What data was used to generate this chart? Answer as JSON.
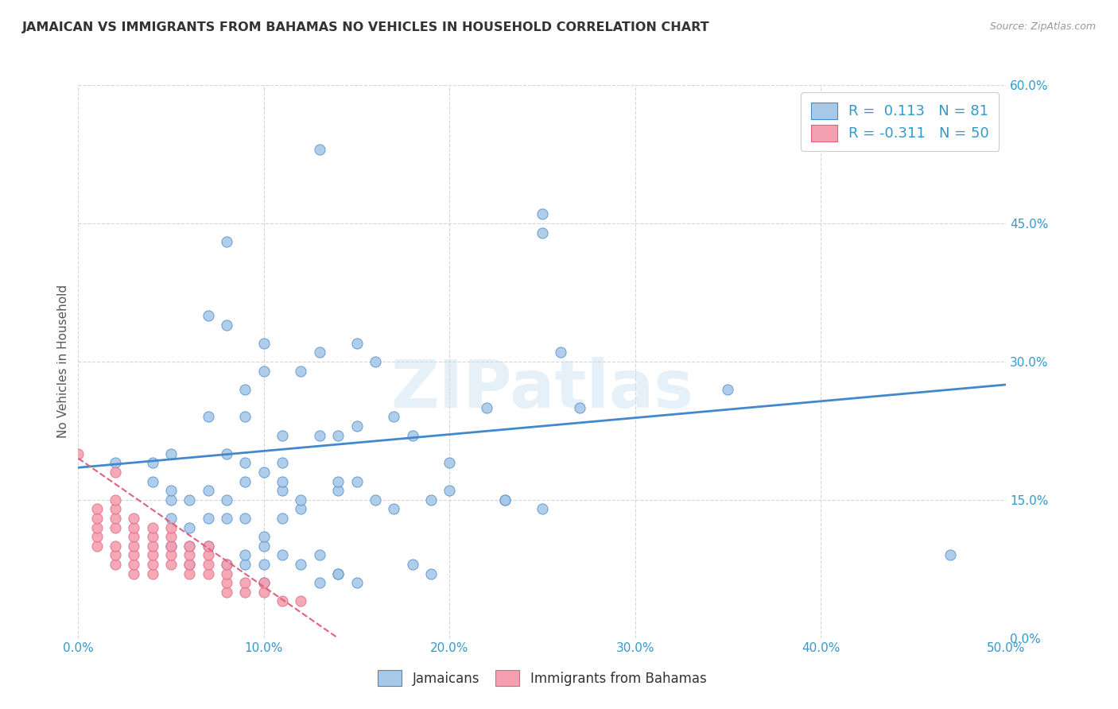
{
  "title": "JAMAICAN VS IMMIGRANTS FROM BAHAMAS NO VEHICLES IN HOUSEHOLD CORRELATION CHART",
  "source": "Source: ZipAtlas.com",
  "xlim": [
    0.0,
    0.5
  ],
  "ylim": [
    0.0,
    0.6
  ],
  "watermark": "ZIPatlas",
  "legend_label1": "Jamaicans",
  "legend_label2": "Immigrants from Bahamas",
  "r1": 0.113,
  "n1": 81,
  "r2": -0.311,
  "n2": 50,
  "blue_color": "#a8c8e8",
  "pink_color": "#f4a0b0",
  "blue_line_color": "#4488cc",
  "pink_line_color": "#e06080",
  "blue_scatter": [
    [
      0.02,
      0.19
    ],
    [
      0.04,
      0.17
    ],
    [
      0.04,
      0.19
    ],
    [
      0.05,
      0.1
    ],
    [
      0.05,
      0.13
    ],
    [
      0.05,
      0.15
    ],
    [
      0.05,
      0.16
    ],
    [
      0.05,
      0.2
    ],
    [
      0.06,
      0.08
    ],
    [
      0.06,
      0.1
    ],
    [
      0.06,
      0.12
    ],
    [
      0.06,
      0.15
    ],
    [
      0.07,
      0.1
    ],
    [
      0.07,
      0.13
    ],
    [
      0.07,
      0.16
    ],
    [
      0.07,
      0.24
    ],
    [
      0.07,
      0.35
    ],
    [
      0.08,
      0.08
    ],
    [
      0.08,
      0.13
    ],
    [
      0.08,
      0.15
    ],
    [
      0.08,
      0.2
    ],
    [
      0.08,
      0.34
    ],
    [
      0.08,
      0.43
    ],
    [
      0.09,
      0.08
    ],
    [
      0.09,
      0.09
    ],
    [
      0.09,
      0.13
    ],
    [
      0.09,
      0.17
    ],
    [
      0.09,
      0.19
    ],
    [
      0.09,
      0.24
    ],
    [
      0.09,
      0.27
    ],
    [
      0.1,
      0.06
    ],
    [
      0.1,
      0.08
    ],
    [
      0.1,
      0.1
    ],
    [
      0.1,
      0.11
    ],
    [
      0.1,
      0.18
    ],
    [
      0.1,
      0.29
    ],
    [
      0.1,
      0.32
    ],
    [
      0.11,
      0.09
    ],
    [
      0.11,
      0.13
    ],
    [
      0.11,
      0.16
    ],
    [
      0.11,
      0.17
    ],
    [
      0.11,
      0.19
    ],
    [
      0.11,
      0.22
    ],
    [
      0.12,
      0.08
    ],
    [
      0.12,
      0.14
    ],
    [
      0.12,
      0.15
    ],
    [
      0.12,
      0.29
    ],
    [
      0.13,
      0.06
    ],
    [
      0.13,
      0.09
    ],
    [
      0.13,
      0.22
    ],
    [
      0.13,
      0.31
    ],
    [
      0.13,
      0.53
    ],
    [
      0.14,
      0.07
    ],
    [
      0.14,
      0.07
    ],
    [
      0.14,
      0.16
    ],
    [
      0.14,
      0.17
    ],
    [
      0.14,
      0.22
    ],
    [
      0.15,
      0.06
    ],
    [
      0.15,
      0.17
    ],
    [
      0.15,
      0.23
    ],
    [
      0.15,
      0.32
    ],
    [
      0.16,
      0.15
    ],
    [
      0.16,
      0.3
    ],
    [
      0.17,
      0.14
    ],
    [
      0.17,
      0.24
    ],
    [
      0.18,
      0.08
    ],
    [
      0.18,
      0.22
    ],
    [
      0.19,
      0.07
    ],
    [
      0.19,
      0.15
    ],
    [
      0.2,
      0.16
    ],
    [
      0.2,
      0.19
    ],
    [
      0.22,
      0.25
    ],
    [
      0.23,
      0.15
    ],
    [
      0.23,
      0.15
    ],
    [
      0.25,
      0.14
    ],
    [
      0.25,
      0.44
    ],
    [
      0.25,
      0.46
    ],
    [
      0.26,
      0.31
    ],
    [
      0.27,
      0.25
    ],
    [
      0.35,
      0.27
    ],
    [
      0.47,
      0.09
    ]
  ],
  "pink_scatter": [
    [
      0.0,
      0.2
    ],
    [
      0.01,
      0.1
    ],
    [
      0.01,
      0.11
    ],
    [
      0.01,
      0.12
    ],
    [
      0.01,
      0.13
    ],
    [
      0.01,
      0.14
    ],
    [
      0.02,
      0.08
    ],
    [
      0.02,
      0.09
    ],
    [
      0.02,
      0.1
    ],
    [
      0.02,
      0.12
    ],
    [
      0.02,
      0.13
    ],
    [
      0.02,
      0.14
    ],
    [
      0.02,
      0.15
    ],
    [
      0.02,
      0.18
    ],
    [
      0.03,
      0.07
    ],
    [
      0.03,
      0.08
    ],
    [
      0.03,
      0.09
    ],
    [
      0.03,
      0.1
    ],
    [
      0.03,
      0.11
    ],
    [
      0.03,
      0.12
    ],
    [
      0.03,
      0.13
    ],
    [
      0.04,
      0.07
    ],
    [
      0.04,
      0.08
    ],
    [
      0.04,
      0.09
    ],
    [
      0.04,
      0.1
    ],
    [
      0.04,
      0.11
    ],
    [
      0.04,
      0.12
    ],
    [
      0.05,
      0.08
    ],
    [
      0.05,
      0.09
    ],
    [
      0.05,
      0.1
    ],
    [
      0.05,
      0.11
    ],
    [
      0.05,
      0.12
    ],
    [
      0.06,
      0.07
    ],
    [
      0.06,
      0.08
    ],
    [
      0.06,
      0.09
    ],
    [
      0.06,
      0.1
    ],
    [
      0.07,
      0.07
    ],
    [
      0.07,
      0.08
    ],
    [
      0.07,
      0.09
    ],
    [
      0.07,
      0.1
    ],
    [
      0.08,
      0.05
    ],
    [
      0.08,
      0.06
    ],
    [
      0.08,
      0.07
    ],
    [
      0.08,
      0.08
    ],
    [
      0.09,
      0.05
    ],
    [
      0.09,
      0.06
    ],
    [
      0.1,
      0.05
    ],
    [
      0.1,
      0.06
    ],
    [
      0.11,
      0.04
    ],
    [
      0.12,
      0.04
    ]
  ],
  "blue_line_x": [
    0.0,
    0.5
  ],
  "blue_line_y": [
    0.185,
    0.275
  ],
  "pink_line_x": [
    0.0,
    0.14
  ],
  "pink_line_y": [
    0.195,
    0.0
  ],
  "x_ticks": [
    0.0,
    0.1,
    0.2,
    0.3,
    0.4,
    0.5
  ],
  "y_ticks": [
    0.0,
    0.15,
    0.3,
    0.45,
    0.6
  ]
}
